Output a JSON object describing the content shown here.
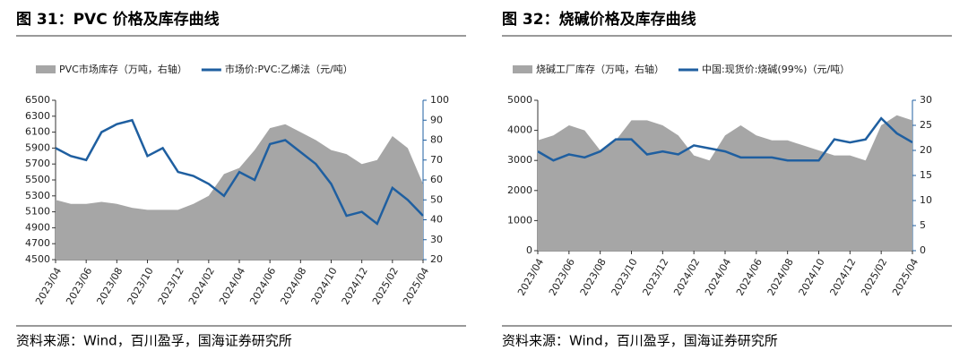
{
  "chart_data": [
    {
      "type": "combo",
      "title": "图 31：PVC 价格及库存曲线",
      "source": "资料来源：Wind，百川盈孚，国海证券研究所",
      "categories": [
        "2023/04",
        null,
        "2023/06",
        null,
        "2023/08",
        null,
        "2023/10",
        null,
        "2023/12",
        null,
        "2024/02",
        null,
        "2024/04",
        null,
        "2024/06",
        null,
        "2024/08",
        null,
        "2024/10",
        null,
        "2024/12",
        null,
        "2025/02",
        null,
        "2025/04"
      ],
      "series": [
        {
          "name": "PVC市场库存（万吨，右轴）",
          "type": "area",
          "axis": "y2",
          "color": "#a6a6a6",
          "values": [
            50,
            48,
            48,
            49,
            48,
            46,
            45,
            45,
            45,
            48,
            52,
            63,
            66,
            75,
            86,
            88,
            84,
            80,
            75,
            73,
            68,
            70,
            82,
            76,
            58
          ]
        },
        {
          "name": "市场价:PVC:乙烯法（元/吨）",
          "type": "line",
          "color": "#1f5fa0",
          "values": [
            5900,
            5800,
            5750,
            6100,
            6200,
            6250,
            5800,
            5900,
            5600,
            5550,
            5450,
            5300,
            5600,
            5500,
            5950,
            6000,
            5850,
            5700,
            5450,
            5050,
            5100,
            4950,
            5400,
            5250,
            5050
          ]
        }
      ],
      "ylim": [
        4500,
        6500
      ],
      "yticks": [
        4500,
        4700,
        4900,
        5100,
        5300,
        5500,
        5700,
        5900,
        6100,
        6300,
        6500
      ],
      "y2lim": [
        20,
        100
      ],
      "y2ticks": [
        20,
        30,
        40,
        50,
        60,
        70,
        80,
        90,
        100
      ]
    },
    {
      "type": "combo",
      "title": "图 32：烧碱价格及库存曲线",
      "source": "资料来源：Wind，百川盈孚，国海证券研究所",
      "categories": [
        "2023/04",
        null,
        "2023/06",
        null,
        "2023/08",
        null,
        "2023/10",
        null,
        "2023/12",
        null,
        "2024/02",
        null,
        "2024/04",
        null,
        "2024/06",
        null,
        "2024/08",
        null,
        "2024/10",
        null,
        "2024/12",
        null,
        "2025/02",
        null,
        "2025/04"
      ],
      "series": [
        {
          "name": "烧碱工厂库存（万吨，右轴）",
          "type": "area",
          "axis": "y2",
          "color": "#a6a6a6",
          "values": [
            22,
            23,
            25,
            24,
            20,
            22,
            26,
            26,
            25,
            23,
            19,
            18,
            23,
            25,
            23,
            22,
            22,
            21,
            20,
            19,
            19,
            18,
            25,
            27,
            26
          ]
        },
        {
          "name": "中国:现货价:烧碱(99%)（元/吨）",
          "type": "line",
          "color": "#1f5fa0",
          "values": [
            3300,
            3000,
            3200,
            3100,
            3300,
            3700,
            3700,
            3200,
            3300,
            3200,
            3500,
            3400,
            3300,
            3100,
            3100,
            3100,
            3000,
            3000,
            3000,
            3700,
            3600,
            3700,
            4400,
            3900,
            3600
          ]
        }
      ],
      "ylim": [
        0,
        5000
      ],
      "yticks": [
        0,
        1000,
        2000,
        3000,
        4000,
        5000
      ],
      "y2lim": [
        0,
        30
      ],
      "y2ticks": [
        0,
        5,
        10,
        15,
        20,
        25,
        30
      ]
    }
  ]
}
